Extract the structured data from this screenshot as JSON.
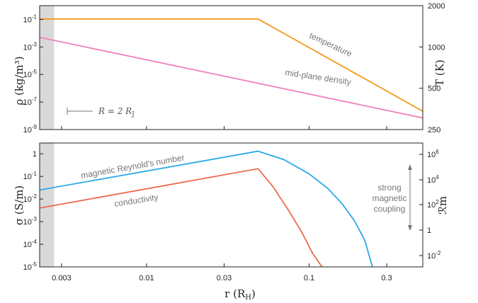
{
  "chart_data": [
    {
      "type": "line",
      "panel": "top",
      "x_scale": "log",
      "x_range": [
        0.0022,
        0.5
      ],
      "left_axis": {
        "label": "ρ (kg/m³)",
        "scale": "log",
        "range": [
          1e-09,
          1.0
        ],
        "ticks": [
          {
            "value": 0.1,
            "base": "10",
            "exp": "-1"
          },
          {
            "value": 0.001,
            "base": "10",
            "exp": "-3"
          },
          {
            "value": 1e-05,
            "base": "10",
            "exp": "-5"
          },
          {
            "value": 1e-07,
            "base": "10",
            "exp": "-7"
          },
          {
            "value": 1e-09,
            "base": "10",
            "exp": "-9"
          }
        ]
      },
      "right_axis": {
        "label": "T (K)",
        "scale": "log",
        "range": [
          250,
          2000
        ],
        "ticks": [
          {
            "value": 2000,
            "text": "2000"
          },
          {
            "value": 1000,
            "text": "1000"
          },
          {
            "value": 500,
            "text": "500"
          },
          {
            "value": 250,
            "text": "250"
          }
        ]
      },
      "series": [
        {
          "name": "temperature",
          "axis": "right",
          "color": "#f29a1a",
          "x": [
            0.0022,
            0.0485,
            0.5
          ],
          "y": [
            1600,
            1600,
            340
          ]
        },
        {
          "name": "mid-plane density",
          "axis": "left",
          "color": "#f17fbf",
          "x": [
            0.0022,
            0.5
          ],
          "y": [
            0.005,
            7e-09
          ]
        }
      ],
      "shaded_region": {
        "x": [
          0.0022,
          0.0027
        ],
        "color": "#d9d9d9"
      },
      "marker_label": {
        "prefix": "R = 2 R",
        "sub": "J"
      }
    },
    {
      "type": "line",
      "panel": "bottom",
      "x_scale": "log",
      "x_range": [
        0.0022,
        0.5
      ],
      "x_label": {
        "prefix": "r (R",
        "sub": "H",
        "suffix": ")"
      },
      "x_ticks": [
        {
          "value": 0.003,
          "text": "0.003"
        },
        {
          "value": 0.01,
          "text": "0.01"
        },
        {
          "value": 0.03,
          "text": "0.03"
        },
        {
          "value": 0.1,
          "text": "0.1"
        },
        {
          "value": 0.3,
          "text": "0.3"
        }
      ],
      "left_axis": {
        "label": "σ (S/m)",
        "scale": "log",
        "range": [
          1e-05,
          3.0
        ],
        "ticks": [
          {
            "value": 1,
            "base": "1",
            "exp": ""
          },
          {
            "value": 0.1,
            "base": "10",
            "exp": "-1"
          },
          {
            "value": 0.01,
            "base": "10",
            "exp": "-2"
          },
          {
            "value": 0.001,
            "base": "10",
            "exp": "-3"
          },
          {
            "value": 0.0001,
            "base": "10",
            "exp": "-4"
          },
          {
            "value": 1e-05,
            "base": "10",
            "exp": "-5"
          }
        ]
      },
      "right_axis": {
        "label": "ℛm",
        "scale": "log",
        "ticks": [
          {
            "value": 1000000.0,
            "base": "10",
            "exp": "6"
          },
          {
            "value": 10000.0,
            "base": "10",
            "exp": "4"
          },
          {
            "value": 100.0,
            "base": "10",
            "exp": "2"
          },
          {
            "value": 1.0,
            "base": "1",
            "exp": ""
          },
          {
            "value": 0.01,
            "base": "10",
            "exp": "-2"
          }
        ]
      },
      "series": [
        {
          "name": "magnetic Reynold's number",
          "axis": "left",
          "color": "#2ba9e8",
          "x": [
            0.0022,
            0.0485,
            0.07,
            0.1,
            0.13,
            0.16,
            0.19,
            0.22,
            0.245
          ],
          "y": [
            0.025,
            1.3,
            0.55,
            0.13,
            0.03,
            0.006,
            0.0011,
            0.00015,
            1e-05
          ]
        },
        {
          "name": "conductivity",
          "axis": "left",
          "color": "#ee6a50",
          "x": [
            0.0022,
            0.0485,
            0.06,
            0.075,
            0.09,
            0.105,
            0.12
          ],
          "y": [
            0.004,
            0.22,
            0.035,
            0.003,
            0.00035,
            4e-05,
            1e-05
          ]
        }
      ],
      "shaded_region": {
        "x": [
          0.0022,
          0.0027
        ],
        "color": "#d9d9d9"
      },
      "annotation": {
        "lines": [
          "strong",
          "magnetic",
          "coupling"
        ]
      }
    }
  ]
}
